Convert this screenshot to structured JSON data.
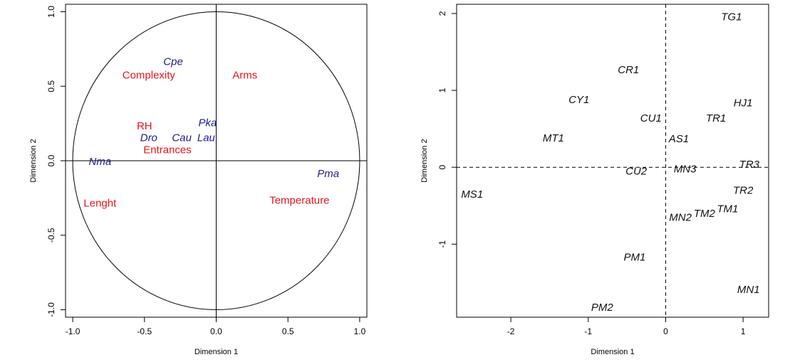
{
  "colors": {
    "variable_group_red": "#e8141c",
    "variable_group_blue": "#1c1c8c",
    "axis": "#000000"
  },
  "chart_data": [
    {
      "type": "scatter",
      "title": "",
      "xlabel": "Dimension 1",
      "ylabel": "Dimension 2",
      "xlim": [
        -1.05,
        1.05
      ],
      "ylim": [
        -1.05,
        1.05
      ],
      "x_ticks": [
        "-1.0",
        "-0.5",
        "0.0",
        "0.5",
        "1.0"
      ],
      "y_ticks": [
        "-1.0",
        "-0.5",
        "0.0",
        "0.5",
        "1.0"
      ],
      "grid": false,
      "unit_circle": true,
      "series": [
        {
          "color": "#e8141c",
          "points": [
            {
              "label": "Complexity",
              "x": -0.47,
              "y": 0.57
            },
            {
              "label": "Arms",
              "x": 0.2,
              "y": 0.57
            },
            {
              "label": "RH",
              "x": -0.5,
              "y": 0.23
            },
            {
              "label": "Entrances",
              "x": -0.34,
              "y": 0.07
            },
            {
              "label": "Lenght",
              "x": -0.81,
              "y": -0.29
            },
            {
              "label": "Temperature",
              "x": 0.58,
              "y": -0.27
            }
          ]
        },
        {
          "color": "#1c1c8c",
          "points": [
            {
              "label": "Cpe",
              "x": -0.3,
              "y": 0.66
            },
            {
              "label": "Pka",
              "x": -0.06,
              "y": 0.25
            },
            {
              "label": "Dro",
              "x": -0.47,
              "y": 0.15
            },
            {
              "label": "Cau",
              "x": -0.24,
              "y": 0.15
            },
            {
              "label": "Lau",
              "x": -0.07,
              "y": 0.15
            },
            {
              "label": "Nma",
              "x": -0.81,
              "y": -0.01
            },
            {
              "label": "Pma",
              "x": 0.78,
              "y": -0.09
            }
          ]
        }
      ]
    },
    {
      "type": "scatter",
      "title": "",
      "xlabel": "Dimension 1",
      "ylabel": "Dimension 2",
      "xlim": [
        -2.7,
        1.33
      ],
      "ylim": [
        -1.95,
        2.12
      ],
      "x_ticks": [
        "-2",
        "-1",
        "0",
        "1"
      ],
      "y_ticks": [
        "-1",
        "0",
        "1",
        "2"
      ],
      "grid": false,
      "reference_lines": {
        "x": 0,
        "y": 0,
        "style": "dashed"
      },
      "points": [
        {
          "label": "TG1",
          "x": 0.85,
          "y": 1.95
        },
        {
          "label": "CR1",
          "x": -0.48,
          "y": 1.26
        },
        {
          "label": "CY1",
          "x": -1.12,
          "y": 0.87
        },
        {
          "label": "HJ1",
          "x": 1.0,
          "y": 0.83
        },
        {
          "label": "TR1",
          "x": 0.65,
          "y": 0.63
        },
        {
          "label": "CU1",
          "x": -0.19,
          "y": 0.63
        },
        {
          "label": "MT1",
          "x": -1.45,
          "y": 0.37
        },
        {
          "label": "AS1",
          "x": 0.17,
          "y": 0.36
        },
        {
          "label": "TR3",
          "x": 1.08,
          "y": 0.03
        },
        {
          "label": "MN3",
          "x": 0.25,
          "y": -0.03
        },
        {
          "label": "CU2",
          "x": -0.38,
          "y": -0.06
        },
        {
          "label": "TR2",
          "x": 1.0,
          "y": -0.31
        },
        {
          "label": "MS1",
          "x": -2.5,
          "y": -0.36
        },
        {
          "label": "TM1",
          "x": 0.8,
          "y": -0.55
        },
        {
          "label": "TM2",
          "x": 0.5,
          "y": -0.61
        },
        {
          "label": "MN2",
          "x": 0.19,
          "y": -0.66
        },
        {
          "label": "PM1",
          "x": -0.4,
          "y": -1.18
        },
        {
          "label": "MN1",
          "x": 1.07,
          "y": -1.6
        },
        {
          "label": "PM2",
          "x": -0.82,
          "y": -1.83
        }
      ]
    }
  ]
}
